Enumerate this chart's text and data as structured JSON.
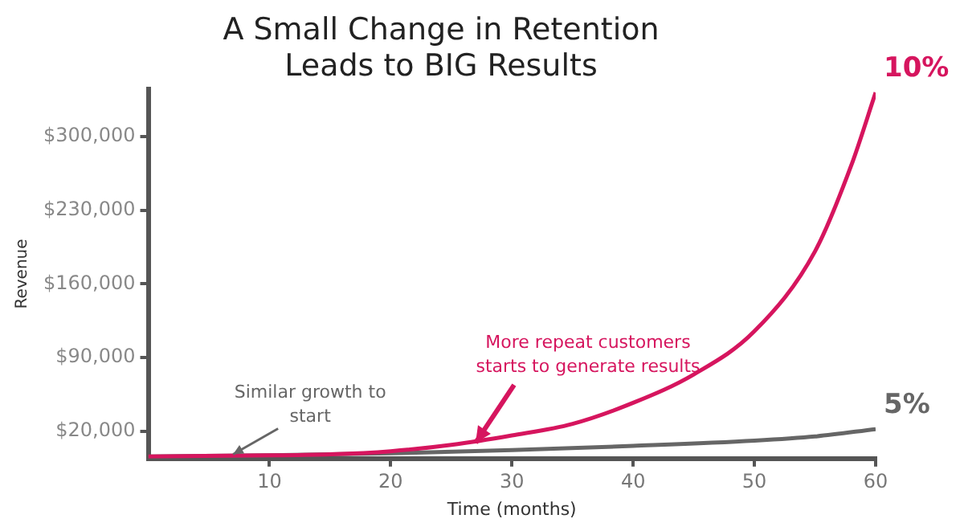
{
  "chart_data": {
    "type": "line",
    "title": "A Small Change in Retention\nLeads to BIG Results",
    "xlabel": "Time (months)",
    "ylabel": "Revenue",
    "xlim": [
      0,
      60
    ],
    "xticks": [
      10,
      20,
      30,
      40,
      50,
      60
    ],
    "ylim": [
      -6000,
      345000
    ],
    "yticks": [
      {
        "value": 20000,
        "label": "$20,000"
      },
      {
        "value": 90000,
        "label": "$90,000"
      },
      {
        "value": 160000,
        "label": "$160,000"
      },
      {
        "value": 230000,
        "label": "$230,000"
      },
      {
        "value": 300000,
        "label": "$300,000"
      }
    ],
    "grid": false,
    "legend": false,
    "marker": "none",
    "line_style": "solid",
    "series": [
      {
        "name": "10%",
        "color": "#d6155e",
        "x": [
          0,
          10,
          15,
          20,
          25,
          30,
          35,
          40,
          45,
          50,
          55,
          58,
          60
        ],
        "values": [
          -4000,
          -3000,
          -2000,
          1000,
          7000,
          16000,
          27000,
          47000,
          74000,
          115000,
          191000,
          273000,
          342000
        ]
      },
      {
        "name": "5%",
        "color": "#666666",
        "x": [
          0,
          10,
          20,
          30,
          40,
          50,
          55,
          60
        ],
        "values": [
          -4000,
          -3000,
          -1000,
          2000,
          6000,
          11000,
          15000,
          22000
        ]
      }
    ],
    "annotations": [
      {
        "text": "Similar growth to\nstart",
        "x": 7,
        "y": -2000
      },
      {
        "text": "More repeat customers\nstarts to generate results",
        "x": 27,
        "y": 9000
      }
    ]
  }
}
